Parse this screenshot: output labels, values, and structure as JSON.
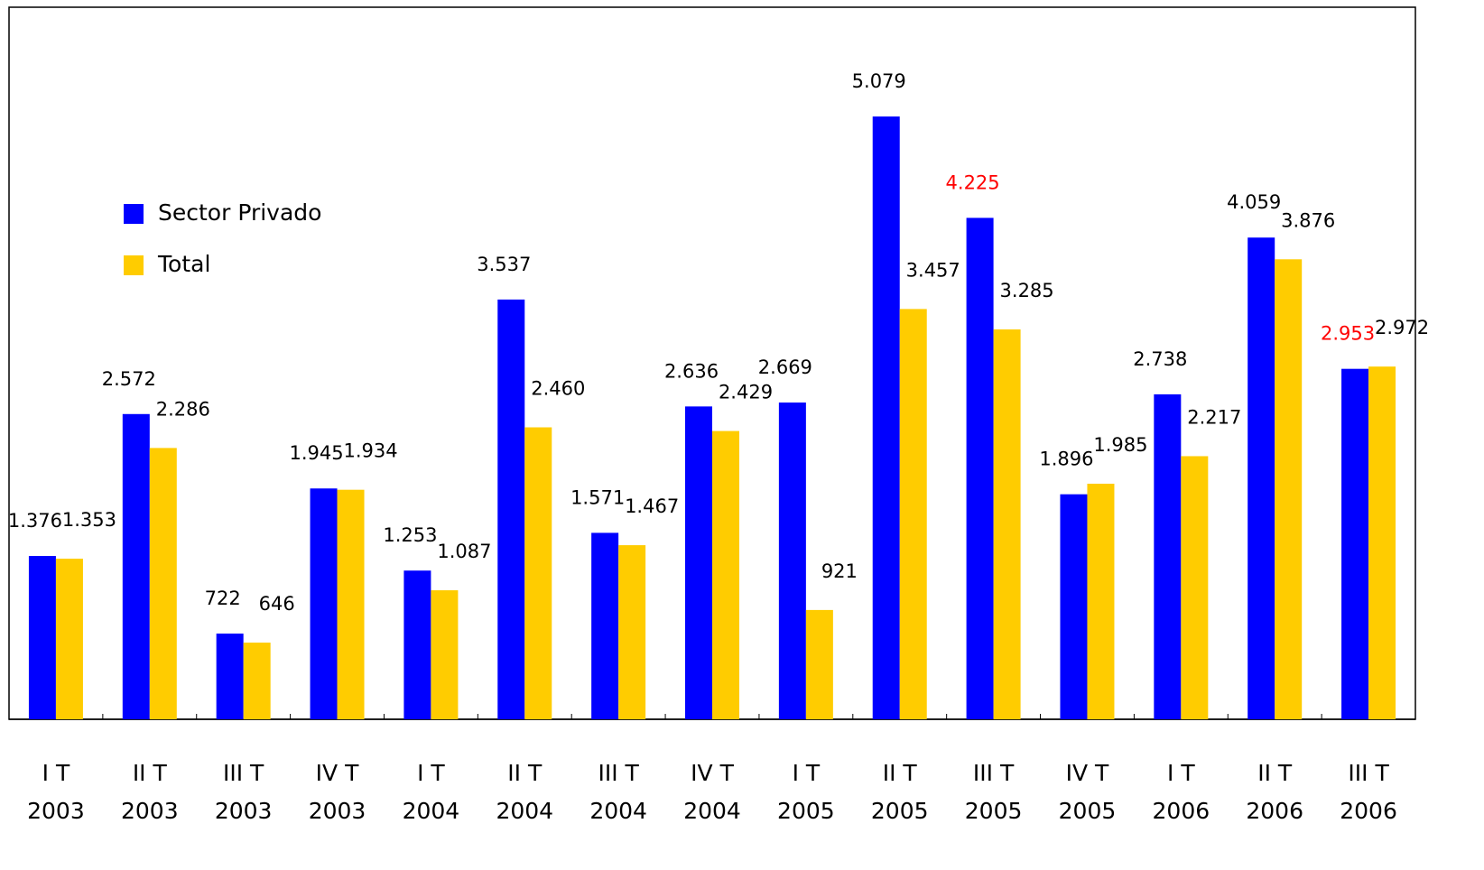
{
  "chart_data": {
    "type": "bar",
    "categories": [
      [
        "I T",
        "2003"
      ],
      [
        "II T",
        "2003"
      ],
      [
        "III T",
        "2003"
      ],
      [
        "IV T",
        "2003"
      ],
      [
        "I T",
        "2004"
      ],
      [
        "II T",
        "2004"
      ],
      [
        "III T",
        "2004"
      ],
      [
        "IV T",
        "2004"
      ],
      [
        "I T",
        "2005"
      ],
      [
        "II T",
        "2005"
      ],
      [
        "III T",
        "2005"
      ],
      [
        "IV T",
        "2005"
      ],
      [
        "I T",
        "2006"
      ],
      [
        "II T",
        "2006"
      ],
      [
        "III T",
        "2006"
      ]
    ],
    "series": [
      {
        "name": "Sector Privado",
        "color": "#0000ff",
        "values": [
          1376,
          2572,
          722,
          1945,
          1253,
          3537,
          1571,
          2636,
          2669,
          5079,
          4225,
          1896,
          2738,
          4059,
          2953
        ],
        "value_labels": [
          "1.376",
          "2.572",
          "722",
          "1.945",
          "1.253",
          "3.537",
          "1.571",
          "2.636",
          "2.669",
          "5.079",
          "4.225",
          "1.896",
          "2.738",
          "4.059",
          "2.953"
        ],
        "label_colors": [
          "#000000",
          "#000000",
          "#000000",
          "#000000",
          "#000000",
          "#000000",
          "#000000",
          "#000000",
          "#000000",
          "#000000",
          "#ff0000",
          "#000000",
          "#000000",
          "#000000",
          "#ff0000"
        ]
      },
      {
        "name": "Total",
        "color": "#ffcc00",
        "values": [
          1353,
          2286,
          646,
          1934,
          1087,
          2460,
          1467,
          2429,
          921,
          3457,
          3285,
          1985,
          2217,
          3876,
          2972
        ],
        "value_labels": [
          "1.353",
          "2.286",
          "646",
          "1.934",
          "1.087",
          "2.460",
          "1.467",
          "2.429",
          "921",
          "3.457",
          "3.285",
          "1.985",
          "2.217",
          "3.876",
          "2.972"
        ],
        "label_colors": [
          "#000000",
          "#000000",
          "#000000",
          "#000000",
          "#000000",
          "#000000",
          "#000000",
          "#000000",
          "#000000",
          "#000000",
          "#000000",
          "#000000",
          "#000000",
          "#000000",
          "#000000"
        ]
      }
    ],
    "ylim": [
      0,
      6000
    ],
    "legend": "upper left"
  }
}
